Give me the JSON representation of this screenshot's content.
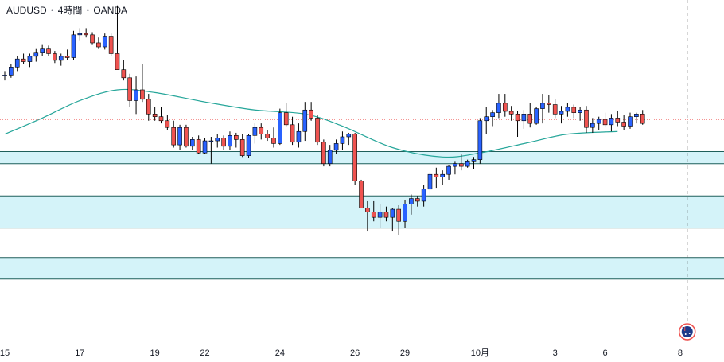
{
  "header": {
    "symbol": "AUDUSD",
    "interval": "4時間",
    "broker": "OANDA",
    "separator": "・"
  },
  "colors": {
    "up": "#2962ff",
    "down": "#ef5350",
    "ma": "#26a69a",
    "zone_fill": "#d4f3f9",
    "zone_line": "#1f5f5b",
    "price_line": "#ef5350",
    "vline": "#555555",
    "wick": "#000000"
  },
  "chart_data": {
    "type": "candlestick",
    "ylim": [
      0.6505,
      0.676
    ],
    "x_ticks": [
      {
        "i": 0,
        "label": "15"
      },
      {
        "i": 12,
        "label": "17"
      },
      {
        "i": 24,
        "label": "19"
      },
      {
        "i": 32,
        "label": "22"
      },
      {
        "i": 44,
        "label": "24"
      },
      {
        "i": 56,
        "label": "26"
      },
      {
        "i": 64,
        "label": "29"
      },
      {
        "i": 76,
        "label": "10月"
      },
      {
        "i": 88,
        "label": "3"
      },
      {
        "i": 96,
        "label": "6"
      },
      {
        "i": 108,
        "label": "8"
      }
    ],
    "ohlc": [
      [
        0.6704,
        0.6707,
        0.67,
        0.6704
      ],
      [
        0.6704,
        0.6712,
        0.6702,
        0.671
      ],
      [
        0.671,
        0.6718,
        0.6707,
        0.6716
      ],
      [
        0.6716,
        0.672,
        0.6712,
        0.6714
      ],
      [
        0.6714,
        0.672,
        0.671,
        0.6718
      ],
      [
        0.6718,
        0.6724,
        0.6714,
        0.6721
      ],
      [
        0.6721,
        0.6727,
        0.6718,
        0.6724
      ],
      [
        0.6724,
        0.6726,
        0.6718,
        0.672
      ],
      [
        0.672,
        0.6722,
        0.6713,
        0.6715
      ],
      [
        0.6715,
        0.672,
        0.6711,
        0.6718
      ],
      [
        0.6718,
        0.6723,
        0.6715,
        0.6717
      ],
      [
        0.6717,
        0.6737,
        0.6715,
        0.6734
      ],
      [
        0.6734,
        0.6739,
        0.673,
        0.6735
      ],
      [
        0.6735,
        0.6739,
        0.6732,
        0.6734
      ],
      [
        0.6734,
        0.6736,
        0.6727,
        0.6728
      ],
      [
        0.6728,
        0.6732,
        0.6724,
        0.6725
      ],
      [
        0.6725,
        0.6735,
        0.6723,
        0.6733
      ],
      [
        0.6733,
        0.6735,
        0.6718,
        0.672
      ],
      [
        0.672,
        0.6756,
        0.6708,
        0.6708
      ],
      [
        0.6708,
        0.6715,
        0.67,
        0.6702
      ],
      [
        0.6702,
        0.6705,
        0.668,
        0.6685
      ],
      [
        0.6685,
        0.6703,
        0.6675,
        0.6693
      ],
      [
        0.6693,
        0.6712,
        0.6684,
        0.6686
      ],
      [
        0.6686,
        0.669,
        0.667,
        0.6675
      ],
      [
        0.6675,
        0.668,
        0.667,
        0.6673
      ],
      [
        0.6673,
        0.668,
        0.6668,
        0.667
      ],
      [
        0.667,
        0.6674,
        0.6663,
        0.6665
      ],
      [
        0.6665,
        0.667,
        0.665,
        0.6652
      ],
      [
        0.6652,
        0.6667,
        0.6648,
        0.6665
      ],
      [
        0.6665,
        0.6667,
        0.665,
        0.6651
      ],
      [
        0.6651,
        0.6658,
        0.6648,
        0.6656
      ],
      [
        0.6656,
        0.6659,
        0.6645,
        0.6646
      ],
      [
        0.6646,
        0.6657,
        0.6645,
        0.6655
      ],
      [
        0.6655,
        0.6658,
        0.6638,
        0.6655
      ],
      [
        0.6655,
        0.666,
        0.665,
        0.6657
      ],
      [
        0.6657,
        0.6659,
        0.6648,
        0.6651
      ],
      [
        0.6651,
        0.6662,
        0.6648,
        0.6659
      ],
      [
        0.6659,
        0.6661,
        0.665,
        0.6656
      ],
      [
        0.6656,
        0.666,
        0.6643,
        0.6644
      ],
      [
        0.6644,
        0.666,
        0.6642,
        0.6659
      ],
      [
        0.6659,
        0.6668,
        0.6653,
        0.6665
      ],
      [
        0.6665,
        0.6668,
        0.6656,
        0.666
      ],
      [
        0.666,
        0.6663,
        0.6655,
        0.6657
      ],
      [
        0.6657,
        0.6665,
        0.665,
        0.6653
      ],
      [
        0.6653,
        0.6679,
        0.6652,
        0.6676
      ],
      [
        0.6676,
        0.6683,
        0.6666,
        0.6667
      ],
      [
        0.6667,
        0.6673,
        0.6652,
        0.6654
      ],
      [
        0.6654,
        0.6668,
        0.665,
        0.6662
      ],
      [
        0.6662,
        0.6684,
        0.6655,
        0.6678
      ],
      [
        0.6678,
        0.6684,
        0.667,
        0.6672
      ],
      [
        0.6672,
        0.6674,
        0.6652,
        0.6654
      ],
      [
        0.6654,
        0.6656,
        0.6636,
        0.6638
      ],
      [
        0.6638,
        0.6652,
        0.6636,
        0.6648
      ],
      [
        0.6648,
        0.6656,
        0.6645,
        0.6653
      ],
      [
        0.6653,
        0.6662,
        0.6648,
        0.6658
      ],
      [
        0.6658,
        0.6661,
        0.6652,
        0.666
      ],
      [
        0.666,
        0.6661,
        0.6622,
        0.6625
      ],
      [
        0.6625,
        0.6626,
        0.6605,
        0.6605
      ],
      [
        0.6605,
        0.661,
        0.6588,
        0.6602
      ],
      [
        0.6602,
        0.661,
        0.6595,
        0.6598
      ],
      [
        0.6598,
        0.6608,
        0.659,
        0.6602
      ],
      [
        0.6602,
        0.6606,
        0.6595,
        0.6598
      ],
      [
        0.6598,
        0.6605,
        0.6588,
        0.6604
      ],
      [
        0.6604,
        0.6607,
        0.6585,
        0.6595
      ],
      [
        0.6595,
        0.6611,
        0.659,
        0.6608
      ],
      [
        0.6608,
        0.6615,
        0.66,
        0.6612
      ],
      [
        0.6612,
        0.6614,
        0.6606,
        0.661
      ],
      [
        0.661,
        0.6622,
        0.6606,
        0.6619
      ],
      [
        0.6619,
        0.6632,
        0.6615,
        0.663
      ],
      [
        0.663,
        0.6635,
        0.662,
        0.6628
      ],
      [
        0.6628,
        0.6633,
        0.6622,
        0.663
      ],
      [
        0.663,
        0.6637,
        0.6626,
        0.6636
      ],
      [
        0.6636,
        0.664,
        0.663,
        0.6638
      ],
      [
        0.6638,
        0.6645,
        0.6633,
        0.6636
      ],
      [
        0.6636,
        0.6641,
        0.6635,
        0.664
      ],
      [
        0.664,
        0.6643,
        0.6634,
        0.6641
      ],
      [
        0.6641,
        0.6672,
        0.6638,
        0.667
      ],
      [
        0.667,
        0.668,
        0.666,
        0.6673
      ],
      [
        0.6673,
        0.6678,
        0.6666,
        0.6676
      ],
      [
        0.6676,
        0.669,
        0.6672,
        0.6683
      ],
      [
        0.6683,
        0.669,
        0.6673,
        0.6677
      ],
      [
        0.6677,
        0.6681,
        0.667,
        0.6675
      ],
      [
        0.6675,
        0.6677,
        0.6658,
        0.667
      ],
      [
        0.667,
        0.6678,
        0.6664,
        0.6675
      ],
      [
        0.6675,
        0.6683,
        0.6665,
        0.6668
      ],
      [
        0.6668,
        0.668,
        0.6667,
        0.6679
      ],
      [
        0.6679,
        0.669,
        0.6668,
        0.6683
      ],
      [
        0.6683,
        0.6689,
        0.6676,
        0.6682
      ],
      [
        0.6682,
        0.6686,
        0.6672,
        0.6675
      ],
      [
        0.6675,
        0.6681,
        0.6668,
        0.6677
      ],
      [
        0.6677,
        0.6683,
        0.6673,
        0.668
      ],
      [
        0.668,
        0.6682,
        0.6672,
        0.6676
      ],
      [
        0.6676,
        0.668,
        0.667,
        0.6678
      ],
      [
        0.6678,
        0.6681,
        0.6661,
        0.6665
      ],
      [
        0.6665,
        0.6672,
        0.6661,
        0.6668
      ],
      [
        0.6668,
        0.6673,
        0.6663,
        0.6671
      ],
      [
        0.6671,
        0.6676,
        0.6665,
        0.6667
      ],
      [
        0.6667,
        0.6675,
        0.6662,
        0.6672
      ],
      [
        0.6672,
        0.6677,
        0.6666,
        0.6669
      ],
      [
        0.6669,
        0.6674,
        0.6663,
        0.6666
      ],
      [
        0.6666,
        0.6676,
        0.6664,
        0.6673
      ],
      [
        0.6673,
        0.6676,
        0.6668,
        0.6675
      ],
      [
        0.6675,
        0.6678,
        0.6667,
        0.6668
      ]
    ],
    "ma_series": [
      {
        "i": 0,
        "v": 0.666
      },
      {
        "i": 6,
        "v": 0.6672
      },
      {
        "i": 12,
        "v": 0.6685
      },
      {
        "i": 18,
        "v": 0.6693
      },
      {
        "i": 24,
        "v": 0.6691
      },
      {
        "i": 32,
        "v": 0.6684
      },
      {
        "i": 40,
        "v": 0.6678
      },
      {
        "i": 48,
        "v": 0.6675
      },
      {
        "i": 54,
        "v": 0.6666
      },
      {
        "i": 62,
        "v": 0.665
      },
      {
        "i": 70,
        "v": 0.6643
      },
      {
        "i": 76,
        "v": 0.6646
      },
      {
        "i": 84,
        "v": 0.6654
      },
      {
        "i": 90,
        "v": 0.666
      },
      {
        "i": 98,
        "v": 0.6662
      }
    ],
    "zones": [
      {
        "top": 0.6647,
        "bottom": 0.6638
      },
      {
        "top": 0.6614,
        "bottom": 0.659
      },
      {
        "top": 0.6568,
        "bottom": 0.6552
      }
    ],
    "current_price": 0.6671,
    "projection_index": 109
  }
}
